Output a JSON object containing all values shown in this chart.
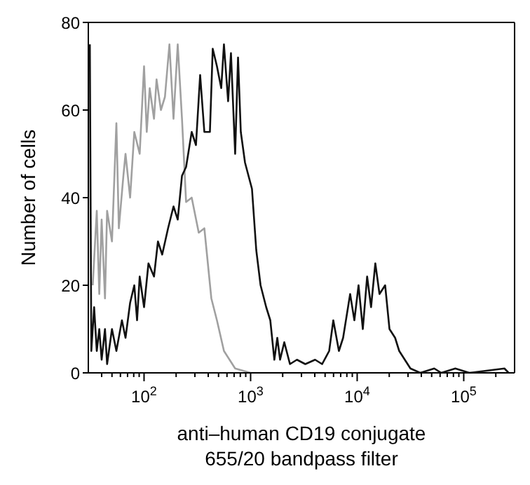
{
  "chart_data": {
    "type": "line",
    "xlabel": "anti–human CD19 conjugate\n655/20 bandpass filter",
    "ylabel": "Number of cells",
    "log": "x",
    "marker": "none",
    "line_style": "solid",
    "xlim": [
      30,
      300000
    ],
    "ylim": [
      0,
      80
    ],
    "yticks": [
      0,
      20,
      40,
      60,
      80
    ],
    "xticks": [
      {
        "value": 40,
        "label": null
      },
      {
        "value": 50,
        "label": null
      },
      {
        "value": 60,
        "label": null
      },
      {
        "value": 70,
        "label": null
      },
      {
        "value": 80,
        "label": null
      },
      {
        "value": 90,
        "label": null
      },
      {
        "value": 100,
        "label": "10$^{2}$"
      },
      {
        "value": 200,
        "label": null
      },
      {
        "value": 300,
        "label": null
      },
      {
        "value": 400,
        "label": null
      },
      {
        "value": 500,
        "label": null
      },
      {
        "value": 600,
        "label": null
      },
      {
        "value": 700,
        "label": null
      },
      {
        "value": 800,
        "label": null
      },
      {
        "value": 900,
        "label": null
      },
      {
        "value": 1000,
        "label": "10$^{3}$"
      },
      {
        "value": 2000,
        "label": null
      },
      {
        "value": 3000,
        "label": null
      },
      {
        "value": 4000,
        "label": null
      },
      {
        "value": 5000,
        "label": null
      },
      {
        "value": 6000,
        "label": null
      },
      {
        "value": 7000,
        "label": null
      },
      {
        "value": 8000,
        "label": null
      },
      {
        "value": 9000,
        "label": null
      },
      {
        "value": 10000,
        "label": "10$^{4}$"
      },
      {
        "value": 20000,
        "label": null
      },
      {
        "value": 30000,
        "label": null
      },
      {
        "value": 40000,
        "label": null
      },
      {
        "value": 50000,
        "label": null
      },
      {
        "value": 60000,
        "label": null
      },
      {
        "value": 70000,
        "label": null
      },
      {
        "value": 80000,
        "label": null
      },
      {
        "value": 90000,
        "label": null
      },
      {
        "value": 100000,
        "label": "10$^{5}$"
      },
      {
        "value": 200000,
        "label": null
      }
    ],
    "series": [
      {
        "color": "#a0a0a0",
        "x": [
          33,
          36,
          38,
          40,
          43,
          45,
          50,
          55,
          58,
          64,
          67,
          74,
          81,
          91,
          100,
          106,
          113,
          124,
          131,
          144,
          157,
          173,
          189,
          207,
          227,
          248,
          280,
          326,
          368,
          428,
          483,
          562,
          716,
          1000,
          3460,
          21300,
          241000
        ],
        "values": [
          20,
          37,
          18,
          35,
          17,
          37,
          30,
          57,
          33,
          45,
          50,
          40,
          55,
          50,
          70,
          55,
          65,
          58,
          67,
          60,
          63,
          75,
          58,
          75,
          58,
          39,
          40,
          32,
          33,
          17,
          12,
          5,
          1,
          0,
          0,
          0,
          0
        ]
      },
      {
        "color": "#111111",
        "x": [
          31,
          32,
          34,
          36,
          38,
          40,
          43,
          45,
          50,
          55,
          62,
          67,
          74,
          81,
          86,
          91,
          100,
          110,
          124,
          135,
          148,
          168,
          189,
          207,
          227,
          248,
          280,
          307,
          336,
          368,
          415,
          441,
          483,
          530,
          562,
          615,
          654,
          716,
          762,
          809,
          886,
          1030,
          1130,
          1240,
          1400,
          1530,
          1670,
          1780,
          1890,
          2070,
          2340,
          2720,
          3260,
          4030,
          4690,
          5460,
          5970,
          6740,
          7380,
          8590,
          9410,
          10300,
          11300,
          12400,
          13500,
          14800,
          16200,
          18300,
          20100,
          22700,
          24800,
          28000,
          31600,
          39100,
          52900,
          61500,
          83400,
          113000,
          241000,
          264000
        ],
        "values": [
          75,
          5,
          15,
          5,
          10,
          3,
          10,
          2,
          10,
          5,
          12,
          8,
          16,
          20,
          12,
          22,
          15,
          25,
          22,
          30,
          27,
          33,
          38,
          35,
          45,
          47,
          55,
          52,
          68,
          55,
          55,
          74,
          70,
          65,
          75,
          62,
          73,
          50,
          72,
          55,
          48,
          42,
          28,
          20,
          15,
          12,
          3,
          8,
          3,
          7,
          2,
          3,
          2,
          3,
          2,
          5,
          12,
          5,
          8,
          18,
          12,
          20,
          10,
          22,
          15,
          25,
          18,
          20,
          10,
          8,
          5,
          3,
          1,
          0,
          1,
          0,
          1,
          0,
          1,
          0
        ]
      }
    ]
  }
}
